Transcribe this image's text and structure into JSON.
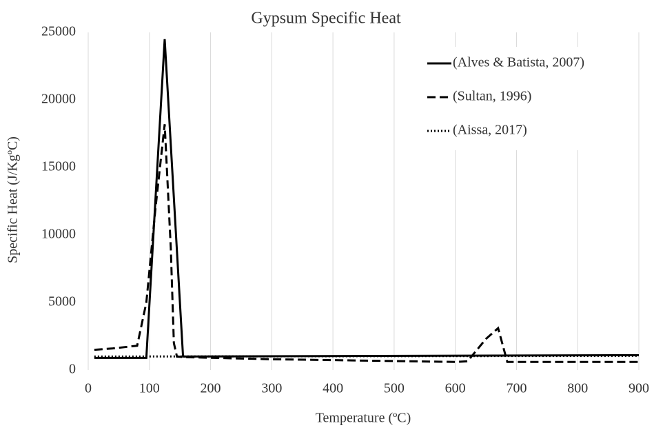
{
  "chart_data": {
    "type": "line",
    "title": "Gypsum Specific Heat",
    "x_label": "Temperature (ºC)",
    "y_label": "Specific Heat (J/KgºC)",
    "xlim": [
      0,
      900
    ],
    "xticks": [
      0,
      100,
      200,
      300,
      400,
      500,
      600,
      700,
      800,
      900
    ],
    "ylim": [
      0,
      25000
    ],
    "yticks": [
      0,
      5000,
      10000,
      15000,
      20000,
      25000
    ],
    "grid": "x",
    "legend": "top-right",
    "series": [
      {
        "name": "(Alves & Batista, 2007)",
        "color": "#000000",
        "dash": "solid",
        "x": [
          10,
          95,
          125,
          155,
          900
        ],
        "values": [
          900,
          900,
          24500,
          1000,
          1100
        ]
      },
      {
        "name": "(Sultan, 1996)",
        "color": "#000000",
        "dash": "dashed",
        "x": [
          10,
          40,
          80,
          95,
          110,
          125,
          135,
          140,
          145,
          160,
          300,
          600,
          620,
          650,
          670,
          685,
          900
        ],
        "values": [
          1500,
          1600,
          1800,
          5000,
          12000,
          18200,
          9000,
          2000,
          1000,
          950,
          800,
          600,
          650,
          2300,
          3100,
          600,
          600
        ]
      },
      {
        "name": "(Aissa, 2017)",
        "color": "#000000",
        "dash": "dotted",
        "x": [
          10,
          900
        ],
        "values": [
          1000,
          1050
        ]
      }
    ]
  }
}
